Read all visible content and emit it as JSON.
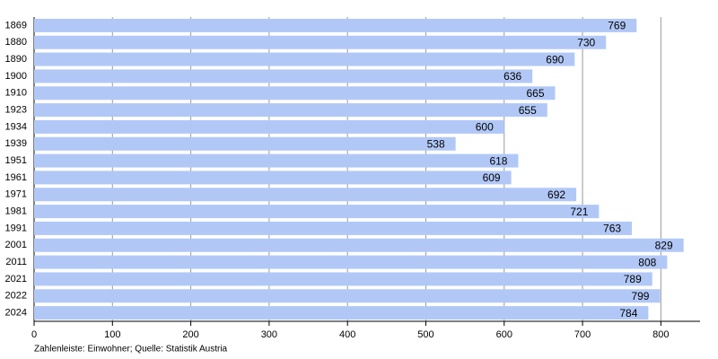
{
  "chart_data": {
    "type": "bar",
    "orientation": "horizontal",
    "categories": [
      "1869",
      "1880",
      "1890",
      "1900",
      "1910",
      "1923",
      "1934",
      "1939",
      "1951",
      "1961",
      "1971",
      "1981",
      "1991",
      "2001",
      "2011",
      "2021",
      "2022",
      "2024"
    ],
    "values": [
      769,
      730,
      690,
      636,
      665,
      655,
      600,
      538,
      618,
      609,
      692,
      721,
      763,
      829,
      808,
      789,
      799,
      784
    ],
    "color": "#b1c8f7",
    "xlim": [
      0,
      850
    ],
    "xticks": [
      0,
      100,
      200,
      300,
      400,
      500,
      600,
      700,
      800
    ],
    "grid": true,
    "note": "Zahlenleiste: Einwohner; Quelle: Statistik Austria"
  }
}
